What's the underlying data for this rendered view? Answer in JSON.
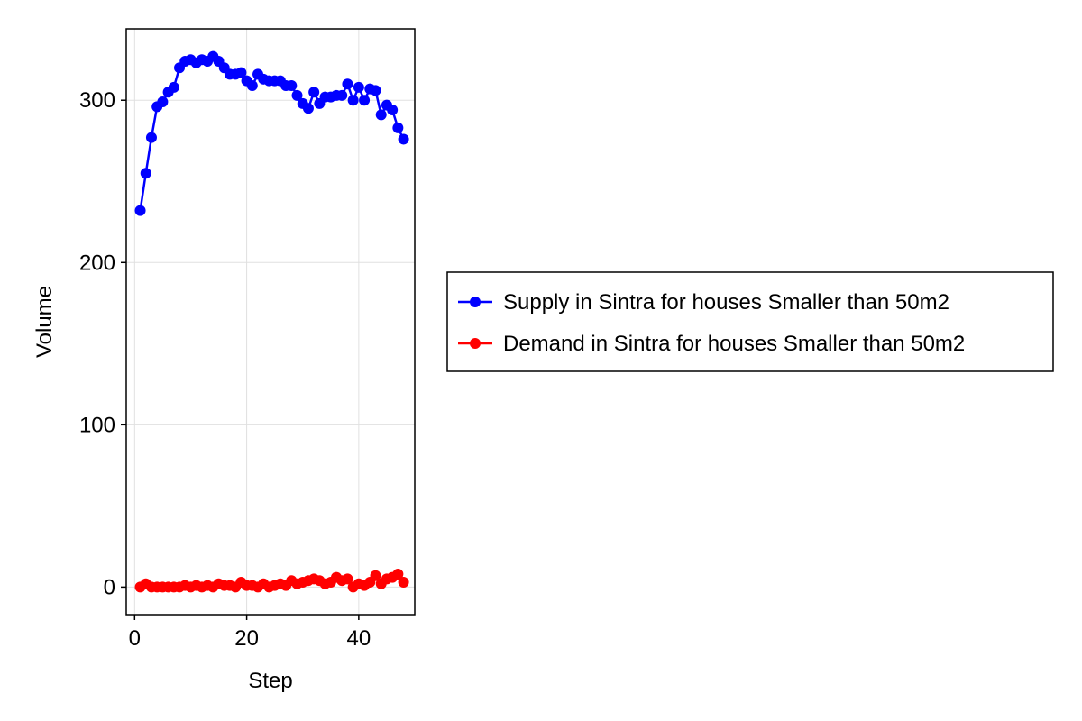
{
  "chart_data": {
    "type": "line",
    "xlabel": "Step",
    "ylabel": "Volume",
    "xlim": [
      -1.5,
      50
    ],
    "ylim": [
      -17,
      344
    ],
    "xticks": [
      0,
      20,
      40
    ],
    "yticks": [
      0,
      100,
      200,
      300
    ],
    "grid": true,
    "legend_position": "right",
    "x": [
      1,
      2,
      3,
      4,
      5,
      6,
      7,
      8,
      9,
      10,
      11,
      12,
      13,
      14,
      15,
      16,
      17,
      18,
      19,
      20,
      21,
      22,
      23,
      24,
      25,
      26,
      27,
      28,
      29,
      30,
      31,
      32,
      33,
      34,
      35,
      36,
      37,
      38,
      39,
      40,
      41,
      42,
      43,
      44,
      45,
      46,
      47,
      48
    ],
    "series": [
      {
        "name": "Supply in Sintra for houses Smaller than 50m2",
        "color": "#0000ff",
        "values": [
          232,
          255,
          277,
          296,
          299,
          305,
          308,
          320,
          324,
          325,
          323,
          325,
          324,
          327,
          324,
          320,
          316,
          316,
          317,
          312,
          309,
          316,
          313,
          312,
          312,
          312,
          309,
          309,
          303,
          298,
          295,
          305,
          298,
          302,
          302,
          303,
          303,
          310,
          300,
          308,
          300,
          307,
          306,
          291,
          297,
          294,
          283,
          276
        ]
      },
      {
        "name": "Demand in Sintra for houses Smaller than 50m2",
        "color": "#ff0000",
        "values": [
          0,
          2,
          0,
          0,
          0,
          0,
          0,
          0,
          1,
          0,
          1,
          0,
          1,
          0,
          2,
          1,
          1,
          0,
          3,
          1,
          1,
          0,
          2,
          0,
          1,
          2,
          1,
          4,
          2,
          3,
          4,
          5,
          4,
          2,
          3,
          6,
          4,
          5,
          0,
          2,
          1,
          3,
          7,
          2,
          5,
          6,
          8,
          3
        ]
      }
    ]
  }
}
